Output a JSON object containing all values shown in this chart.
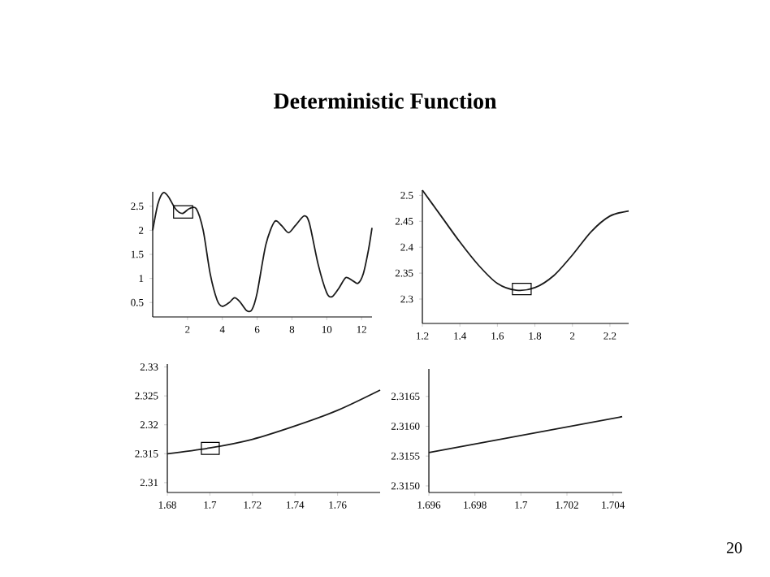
{
  "chart_data": [
    {
      "type": "line",
      "title": "Deterministic  Function",
      "color": "#1a1a1a",
      "x": [
        0,
        0.3,
        0.6,
        0.9,
        1.3,
        1.7,
        2.1,
        2.5,
        2.9,
        3.3,
        3.7,
        4.0,
        4.4,
        4.7,
        5.0,
        5.4,
        5.7,
        6.0,
        6.5,
        7.0,
        7.4,
        7.8,
        8.2,
        8.7,
        9.0,
        9.5,
        10.0,
        10.3,
        10.7,
        11.1,
        11.5,
        11.8,
        12.1,
        12.4,
        12.6
      ],
      "values": [
        2.0,
        2.55,
        2.78,
        2.7,
        2.45,
        2.35,
        2.45,
        2.45,
        2.0,
        1.1,
        0.55,
        0.42,
        0.5,
        0.6,
        0.52,
        0.33,
        0.35,
        0.7,
        1.7,
        2.18,
        2.1,
        1.95,
        2.1,
        2.3,
        2.15,
        1.3,
        0.7,
        0.62,
        0.8,
        1.02,
        0.95,
        0.9,
        1.1,
        1.6,
        2.05
      ],
      "xlim": [
        0,
        12.6
      ],
      "ylim": [
        0.2,
        2.8
      ],
      "xticks": [
        2,
        4,
        6,
        8,
        10,
        12
      ],
      "yticks": [
        0.5,
        1,
        1.5,
        2,
        2.5
      ]
    },
    {
      "type": "line",
      "color": "#1a1a1a",
      "x": [
        1.2,
        1.3,
        1.4,
        1.5,
        1.6,
        1.7,
        1.8,
        1.9,
        2.0,
        2.1,
        2.2,
        2.3
      ],
      "values": [
        2.51,
        2.46,
        2.41,
        2.365,
        2.33,
        2.317,
        2.322,
        2.345,
        2.385,
        2.43,
        2.46,
        2.47
      ],
      "xlim": [
        1.2,
        2.3
      ],
      "ylim": [
        2.253,
        2.51
      ],
      "xticks": [
        1.2,
        1.4,
        1.6,
        1.8,
        2,
        2.2
      ],
      "yticks": [
        2.3,
        2.35,
        2.4,
        2.45,
        2.5
      ]
    },
    {
      "type": "line",
      "color": "#1a1a1a",
      "x": [
        1.68,
        1.7,
        1.72,
        1.74,
        1.76,
        1.78
      ],
      "values": [
        2.315,
        2.316,
        2.3175,
        2.3198,
        2.3225,
        2.326
      ],
      "xlim": [
        1.68,
        1.78
      ],
      "ylim": [
        2.3083,
        2.3305
      ],
      "xticks": [
        1.68,
        1.7,
        1.72,
        1.74,
        1.76
      ],
      "yticks": [
        2.31,
        2.315,
        2.32,
        2.325,
        2.33
      ]
    },
    {
      "type": "line",
      "color": "#1a1a1a",
      "x": [
        1.696,
        1.7044
      ],
      "values": [
        2.31556,
        2.31616
      ],
      "xlim": [
        1.696,
        1.7044
      ],
      "ylim": [
        2.31489,
        2.31696
      ],
      "xticks": [
        1.696,
        1.698,
        1.7,
        1.702,
        1.704
      ],
      "yticks": [
        {
          "value": 2.315,
          "label": "2.3150"
        },
        2.3155,
        {
          "value": 2.316,
          "label": "2.3160"
        },
        2.3165
      ],
      "annotations": [
        "20"
      ]
    }
  ]
}
